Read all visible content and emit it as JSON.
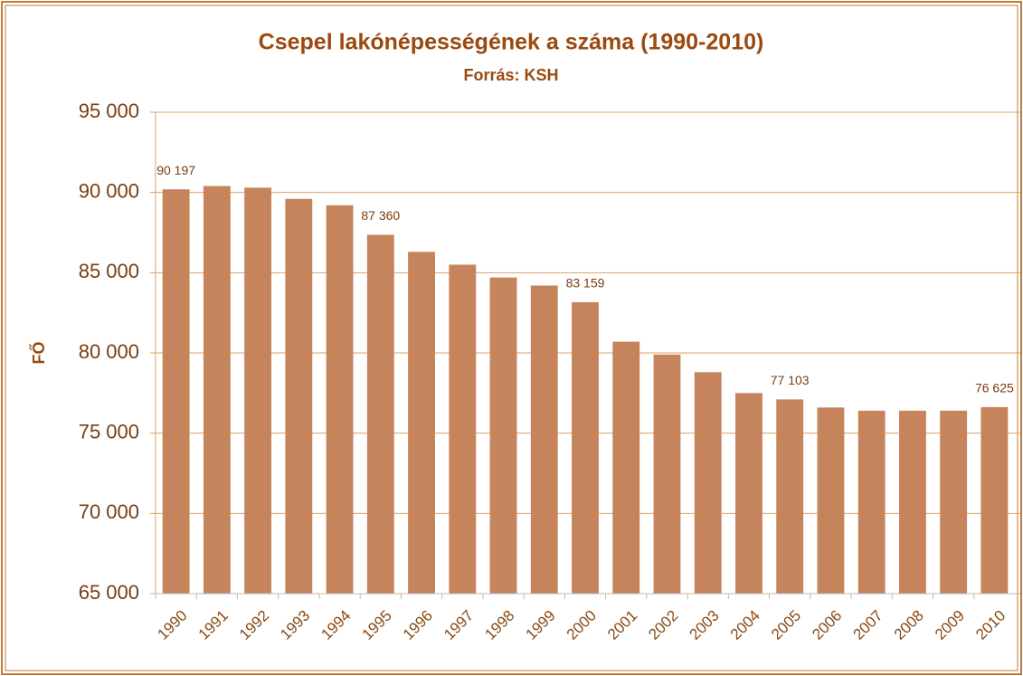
{
  "chart_data": {
    "type": "bar",
    "title": "Csepel lakónépességének a száma (1990-2010)",
    "subtitle": "Forrás: KSH",
    "y_label": "FŐ",
    "categories": [
      "1990",
      "1991",
      "1992",
      "1993",
      "1994",
      "1995",
      "1996",
      "1997",
      "1998",
      "1999",
      "2000",
      "2001",
      "2002",
      "2003",
      "2004",
      "2005",
      "2006",
      "2007",
      "2008",
      "2009",
      "2010"
    ],
    "values": [
      90197,
      90400,
      90300,
      89600,
      89200,
      87360,
      86300,
      85500,
      84700,
      84200,
      83159,
      80700,
      79900,
      78800,
      77500,
      77103,
      76600,
      76400,
      76400,
      76400,
      76625
    ],
    "value_labels": [
      "90 197",
      null,
      null,
      null,
      null,
      "87 360",
      null,
      null,
      null,
      null,
      "83 159",
      null,
      null,
      null,
      null,
      "77 103",
      null,
      null,
      null,
      null,
      "76 625"
    ],
    "color": "#c5845c",
    "ylim": [
      65000,
      95000
    ],
    "yticks": [
      {
        "value": 65000,
        "label": "65 000"
      },
      {
        "value": 70000,
        "label": "70 000"
      },
      {
        "value": 75000,
        "label": "75 000"
      },
      {
        "value": 80000,
        "label": "80 000"
      },
      {
        "value": 85000,
        "label": "85 000"
      },
      {
        "value": 90000,
        "label": "90 000"
      },
      {
        "value": 95000,
        "label": "95 000"
      }
    ],
    "grid": true
  }
}
